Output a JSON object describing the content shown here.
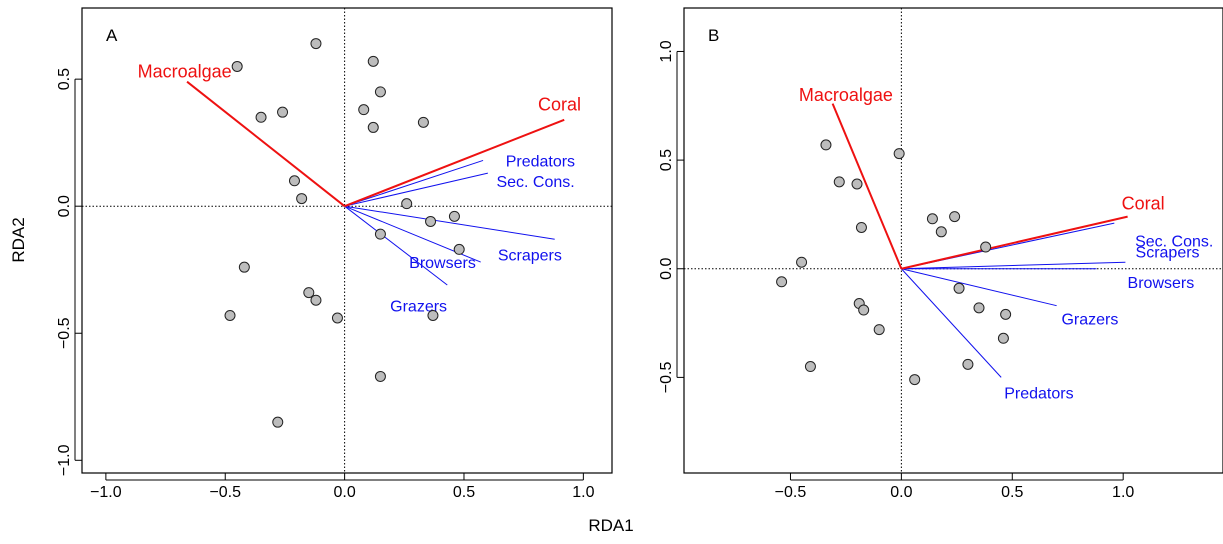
{
  "figure": {
    "shared_xlabel": "RDA1",
    "shared_ylabel": "RDA2"
  },
  "colors": {
    "env_arrow": "#ee1111",
    "species_arrow": "#1111ee",
    "point_fill": "#bdbdbd",
    "point_stroke": "#222222",
    "axis": "#000000"
  },
  "chart_data": [
    {
      "type": "scatter",
      "panel_label": "A",
      "xlabel": "RDA1",
      "ylabel": "RDA2",
      "xlim": [
        -1.1,
        1.12
      ],
      "ylim": [
        -1.05,
        0.78
      ],
      "xticks": [
        -1.0,
        -0.5,
        0.0,
        0.5,
        1.0
      ],
      "yticks": [
        -1.0,
        -0.5,
        0.0,
        0.5
      ],
      "xtick_labels": [
        "−1.0",
        "−0.5",
        "0.0",
        "0.5",
        "1.0"
      ],
      "ytick_labels": [
        "−1.0",
        "−0.5",
        "0.0",
        "0.5"
      ],
      "reference_lines": {
        "x": 0,
        "y": 0,
        "style": "dotted"
      },
      "points": [
        {
          "x": -0.45,
          "y": 0.55
        },
        {
          "x": -0.12,
          "y": 0.64
        },
        {
          "x": -0.35,
          "y": 0.35
        },
        {
          "x": -0.26,
          "y": 0.37
        },
        {
          "x": 0.12,
          "y": 0.57
        },
        {
          "x": 0.15,
          "y": 0.45
        },
        {
          "x": 0.08,
          "y": 0.38
        },
        {
          "x": 0.12,
          "y": 0.31
        },
        {
          "x": 0.33,
          "y": 0.33
        },
        {
          "x": -0.21,
          "y": 0.1
        },
        {
          "x": -0.18,
          "y": 0.03
        },
        {
          "x": 0.26,
          "y": 0.01
        },
        {
          "x": 0.46,
          "y": -0.04
        },
        {
          "x": 0.36,
          "y": -0.06
        },
        {
          "x": 0.15,
          "y": -0.11
        },
        {
          "x": 0.48,
          "y": -0.17
        },
        {
          "x": -0.42,
          "y": -0.24
        },
        {
          "x": -0.15,
          "y": -0.34
        },
        {
          "x": -0.12,
          "y": -0.37
        },
        {
          "x": -0.48,
          "y": -0.43
        },
        {
          "x": -0.03,
          "y": -0.44
        },
        {
          "x": 0.37,
          "y": -0.43
        },
        {
          "x": 0.15,
          "y": -0.67
        },
        {
          "x": -0.28,
          "y": -0.85
        }
      ],
      "env_arrows": [
        {
          "label": "Macroalgae",
          "x": -0.66,
          "y": 0.49,
          "label_x": -0.67,
          "label_y": 0.53,
          "anchor": "middle"
        },
        {
          "label": "Coral",
          "x": 0.92,
          "y": 0.34,
          "label_x": 0.9,
          "label_y": 0.4,
          "anchor": "middle"
        }
      ],
      "species_arrows": [
        {
          "label": "Predators",
          "x": 0.58,
          "y": 0.18,
          "label_x": 0.82,
          "label_y": 0.18,
          "anchor": "middle"
        },
        {
          "label": "Sec. Cons.",
          "x": 0.6,
          "y": 0.13,
          "label_x": 0.8,
          "label_y": 0.1,
          "anchor": "middle"
        },
        {
          "label": "Scrapers",
          "x": 0.88,
          "y": -0.13,
          "label_x": 0.91,
          "label_y": -0.19,
          "anchor": "end"
        },
        {
          "label": "Browsers",
          "x": 0.57,
          "y": -0.22,
          "label_x": 0.41,
          "label_y": -0.22,
          "anchor": "middle"
        },
        {
          "label": "Grazers",
          "x": 0.43,
          "y": -0.31,
          "label_x": 0.31,
          "label_y": -0.39,
          "anchor": "middle"
        }
      ]
    },
    {
      "type": "scatter",
      "panel_label": "B",
      "xlabel": "RDA1",
      "ylabel": "RDA2",
      "xlim": [
        -0.98,
        1.45
      ],
      "ylim": [
        -0.94,
        1.2
      ],
      "xticks": [
        -0.5,
        0.0,
        0.5,
        1.0
      ],
      "yticks": [
        -0.5,
        0.0,
        0.5,
        1.0
      ],
      "xtick_labels": [
        "−0.5",
        "0.0",
        "0.5",
        "1.0"
      ],
      "ytick_labels": [
        "−0.5",
        "0.0",
        "0.5",
        "1.0"
      ],
      "reference_lines": {
        "x": 0,
        "y": 0,
        "style": "dotted"
      },
      "points": [
        {
          "x": -0.34,
          "y": 0.57
        },
        {
          "x": -0.28,
          "y": 0.4
        },
        {
          "x": -0.2,
          "y": 0.39
        },
        {
          "x": -0.01,
          "y": 0.53
        },
        {
          "x": -0.18,
          "y": 0.19
        },
        {
          "x": 0.14,
          "y": 0.23
        },
        {
          "x": 0.24,
          "y": 0.24
        },
        {
          "x": 0.18,
          "y": 0.17
        },
        {
          "x": 0.38,
          "y": 0.1
        },
        {
          "x": -0.45,
          "y": 0.03
        },
        {
          "x": -0.54,
          "y": -0.06
        },
        {
          "x": 0.26,
          "y": -0.09
        },
        {
          "x": -0.19,
          "y": -0.16
        },
        {
          "x": -0.17,
          "y": -0.19
        },
        {
          "x": 0.35,
          "y": -0.18
        },
        {
          "x": 0.47,
          "y": -0.21
        },
        {
          "x": -0.1,
          "y": -0.28
        },
        {
          "x": 0.46,
          "y": -0.32
        },
        {
          "x": -0.41,
          "y": -0.45
        },
        {
          "x": 0.3,
          "y": -0.44
        },
        {
          "x": 0.06,
          "y": -0.51
        }
      ],
      "env_arrows": [
        {
          "label": "Macroalgae",
          "x": -0.31,
          "y": 0.76,
          "label_x": -0.25,
          "label_y": 0.8,
          "anchor": "middle"
        },
        {
          "label": "Coral",
          "x": 1.02,
          "y": 0.24,
          "label_x": 1.09,
          "label_y": 0.3,
          "anchor": "middle"
        }
      ],
      "species_arrows": [
        {
          "label": "Sec. Cons.",
          "x": 0.96,
          "y": 0.21,
          "label_x": 1.23,
          "label_y": 0.13,
          "anchor": "middle"
        },
        {
          "label": "Scrapers",
          "x": 1.01,
          "y": 0.03,
          "label_x": 1.2,
          "label_y": 0.08,
          "anchor": "middle"
        },
        {
          "label": "Browsers",
          "x": 0.88,
          "y": 0.0,
          "label_x": 1.17,
          "label_y": -0.06,
          "anchor": "middle"
        },
        {
          "label": "Grazers",
          "x": 0.7,
          "y": -0.17,
          "label_x": 0.85,
          "label_y": -0.23,
          "anchor": "middle"
        },
        {
          "label": "Predators",
          "x": 0.45,
          "y": -0.5,
          "label_x": 0.62,
          "label_y": -0.57,
          "anchor": "middle"
        }
      ]
    }
  ]
}
